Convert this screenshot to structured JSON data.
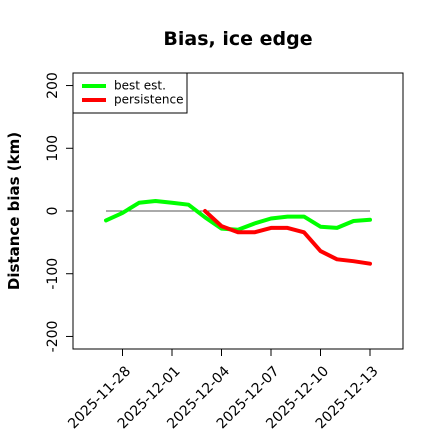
{
  "chart_data": {
    "type": "line",
    "title": "Bias, ice edge",
    "xlabel": "",
    "ylabel": "Distance bias (km)",
    "ylim": [
      -220,
      220
    ],
    "y_ticks": [
      200,
      100,
      0,
      -100,
      -200
    ],
    "x_tick_labels": [
      "2025-11-28",
      "2025-12-01",
      "2025-12-04",
      "2025-12-07",
      "2025-12-10",
      "2025-12-13"
    ],
    "x_tick_positions": [
      "2025-11-28",
      "2025-12-01",
      "2025-12-04",
      "2025-12-07",
      "2025-12-10",
      "2025-12-13"
    ],
    "xlim": [
      "2025-11-25",
      "2025-12-15"
    ],
    "reference_line": 0,
    "legend_position": "top-left",
    "grid": false,
    "series": [
      {
        "name": "best est.",
        "color": "#00ff00",
        "x": [
          "2025-11-27",
          "2025-11-28",
          "2025-11-29",
          "2025-11-30",
          "2025-12-01",
          "2025-12-02",
          "2025-12-03",
          "2025-12-04",
          "2025-12-05",
          "2025-12-06",
          "2025-12-07",
          "2025-12-08",
          "2025-12-09",
          "2025-12-10",
          "2025-12-11",
          "2025-12-12",
          "2025-12-13"
        ],
        "values": [
          -15,
          -3,
          13,
          16,
          13,
          10,
          -10,
          -28,
          -30,
          -20,
          -12,
          -9,
          -9,
          -25,
          -27,
          -16,
          -14
        ]
      },
      {
        "name": "persistence",
        "color": "#ff0000",
        "x": [
          "2025-12-03",
          "2025-12-04",
          "2025-12-05",
          "2025-12-06",
          "2025-12-07",
          "2025-12-08",
          "2025-12-09",
          "2025-12-10",
          "2025-12-11",
          "2025-12-12",
          "2025-12-13"
        ],
        "values": [
          0,
          -24,
          -34,
          -34,
          -27,
          -27,
          -34,
          -64,
          -77,
          -80,
          -84
        ]
      }
    ]
  }
}
